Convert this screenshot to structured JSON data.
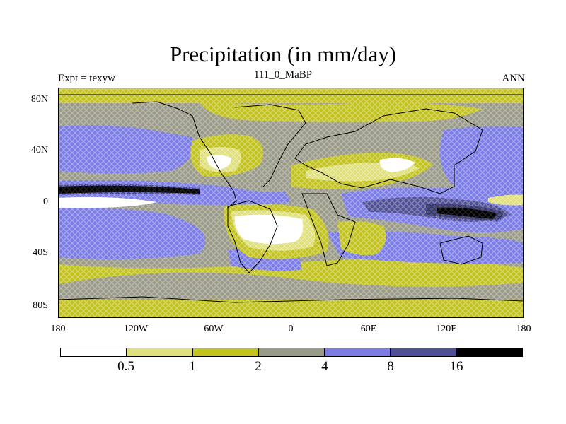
{
  "title": "Precipitation (in mm/day)",
  "experiment_label": "Expt = texyw",
  "period_label": "111_0_MaBP",
  "season_label": "ANN",
  "map": {
    "lat_ticks": [
      "80N",
      "40N",
      "0",
      "40S",
      "80S"
    ],
    "lon_ticks": [
      "180",
      "120W",
      "60W",
      "0",
      "60E",
      "120E",
      "180"
    ]
  },
  "colorbar": {
    "colors": [
      "#ffffff",
      "#e0e07c",
      "#c3c31f",
      "#9a9a88",
      "#7b7be6",
      "#4f4f96",
      "#000000"
    ],
    "labels": [
      "0.5",
      "1",
      "2",
      "4",
      "8",
      "16"
    ]
  }
}
